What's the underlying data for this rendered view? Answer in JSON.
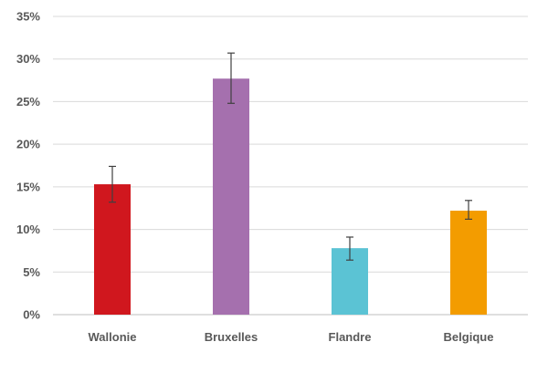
{
  "chart_data": {
    "type": "bar",
    "categories": [
      "Wallonie",
      "Bruxelles",
      "Flandre",
      "Belgique"
    ],
    "values": [
      15.3,
      27.7,
      7.8,
      12.2
    ],
    "error_low": [
      13.2,
      24.8,
      6.4,
      11.2
    ],
    "error_high": [
      17.4,
      30.7,
      9.1,
      13.4
    ],
    "colors": [
      "#d0171e",
      "#a570ae",
      "#5bc3d4",
      "#f39c00"
    ],
    "ylim": [
      0,
      35
    ],
    "yticks": [
      0,
      5,
      10,
      15,
      20,
      25,
      30,
      35
    ],
    "ytick_labels": [
      "0%",
      "5%",
      "10%",
      "15%",
      "20%",
      "25%",
      "30%",
      "35%"
    ],
    "grid": true,
    "legend": "none"
  }
}
